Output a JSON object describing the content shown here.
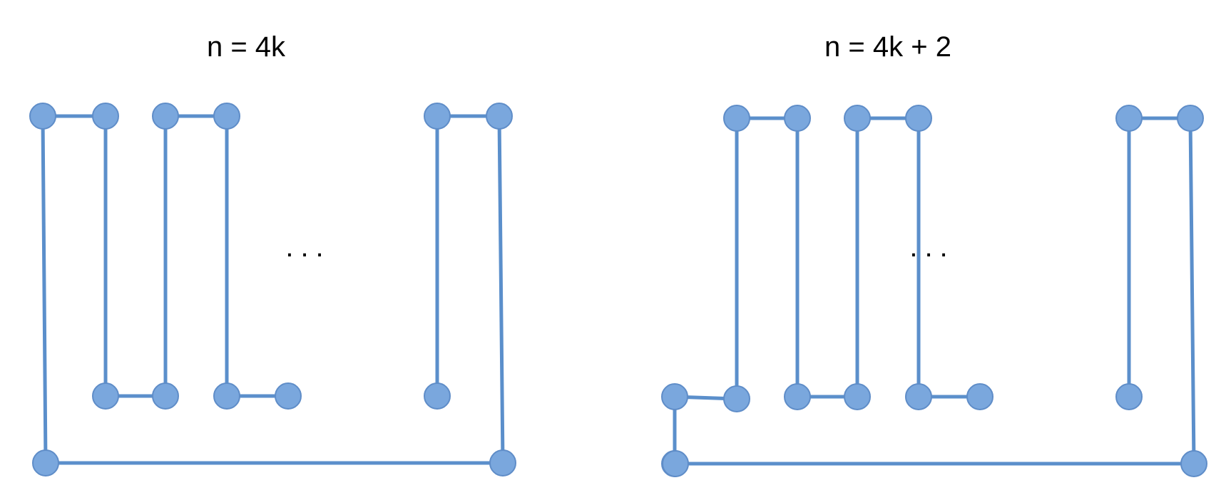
{
  "panels": [
    {
      "title": "n = 4k",
      "ellipsis": "...",
      "nodes": [
        "a1",
        "a2",
        "a3",
        "a4",
        "a5",
        "a6",
        "a7",
        "a8",
        "a9",
        "a10",
        "a11",
        "a12",
        "a13",
        "a14"
      ],
      "edges": [
        [
          "a1",
          "a2"
        ],
        [
          "a3",
          "a4"
        ],
        [
          "a5",
          "a6"
        ],
        [
          "a2",
          "a7"
        ],
        [
          "a3",
          "a8"
        ],
        [
          "a4",
          "a9"
        ],
        [
          "a7",
          "a8"
        ],
        [
          "a9",
          "a10"
        ],
        [
          "a5",
          "a11"
        ],
        [
          "a1",
          "a12"
        ],
        [
          "a12",
          "a13"
        ],
        [
          "a13",
          "a6"
        ]
      ]
    },
    {
      "title": "n = 4k + 2",
      "ellipsis": "...",
      "nodes": [
        "b1",
        "b2",
        "b3",
        "b4",
        "b5",
        "b6",
        "b7",
        "b8",
        "b9",
        "b10",
        "b11",
        "b12",
        "b13",
        "b14",
        "b15",
        "b16"
      ],
      "edges": [
        [
          "b1",
          "b2"
        ],
        [
          "b3",
          "b4"
        ],
        [
          "b5",
          "b6"
        ],
        [
          "b1",
          "b8"
        ],
        [
          "b2",
          "b9"
        ],
        [
          "b3",
          "b10"
        ],
        [
          "b4",
          "b11"
        ],
        [
          "b5",
          "b13"
        ],
        [
          "b6",
          "b16"
        ],
        [
          "b7",
          "b8"
        ],
        [
          "b9",
          "b10"
        ],
        [
          "b11",
          "b12"
        ],
        [
          "b7",
          "b14"
        ],
        [
          "b14",
          "b15"
        ],
        [
          "b15",
          "b16"
        ]
      ]
    }
  ],
  "colors": {
    "edge": "#5b8fcb",
    "node": "#7aa7dd"
  }
}
